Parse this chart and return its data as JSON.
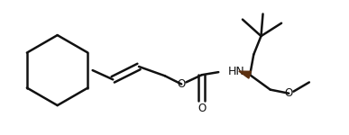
{
  "bg_color": "#ffffff",
  "line_color": "#111111",
  "bond_lw": 1.8,
  "wedge_color": "#5C3010",
  "figsize": [
    3.87,
    1.5
  ],
  "dpi": 100,
  "hn_label": "HN",
  "o_label1": "O",
  "o_label2": "O",
  "o_label3": "O",
  "font_size": 8.5
}
